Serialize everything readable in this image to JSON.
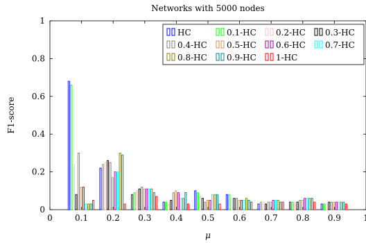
{
  "chart_data": {
    "type": "bar",
    "title": "Networks with 5000 nodes",
    "xlabel": "μ",
    "ylabel": "F1-score",
    "xlim": [
      0,
      1
    ],
    "ylim": [
      0,
      1
    ],
    "xticks": [
      0,
      0.1,
      0.2,
      0.3,
      0.4,
      0.5,
      0.6,
      0.7,
      0.8,
      0.9,
      1
    ],
    "xtick_labels": [
      "0",
      "0.1",
      "0.2",
      "0.3",
      "0.4",
      "0.5",
      "0.6",
      "0.7",
      "0.8",
      "0.9",
      "1"
    ],
    "yticks": [
      0,
      0.2,
      0.4,
      0.6,
      0.8,
      1
    ],
    "ytick_labels": [
      "0",
      "0.2",
      "0.4",
      "0.6",
      "0.8",
      "1"
    ],
    "grid": false,
    "legend_position": "top-right",
    "x": [
      0.06,
      0.16,
      0.26,
      0.36,
      0.46,
      0.56,
      0.66,
      0.76,
      0.86
    ],
    "bar_group_width": 0.085,
    "series": [
      {
        "name": "HC",
        "color": "#0000ff",
        "values": [
          0.68,
          0.22,
          0.08,
          0.04,
          0.1,
          0.08,
          0.03,
          0.04,
          0.03
        ]
      },
      {
        "name": "0.1-HC",
        "color": "#00ff00",
        "values": [
          0.66,
          0.24,
          0.09,
          0.04,
          0.09,
          0.08,
          0.04,
          0.04,
          0.03
        ]
      },
      {
        "name": "0.2-HC",
        "color": "#ffc0c0",
        "values": [
          0.24,
          0.25,
          0.1,
          0.03,
          0.07,
          0.06,
          0.04,
          0.04,
          0.03
        ]
      },
      {
        "name": "0.3-HC",
        "color": "#000000",
        "values": [
          0.08,
          0.26,
          0.11,
          0.05,
          0.06,
          0.06,
          0.03,
          0.04,
          0.04
        ]
      },
      {
        "name": "0.4-HC",
        "color": "#808080",
        "values": [
          0.3,
          0.25,
          0.12,
          0.09,
          0.04,
          0.06,
          0.04,
          0.05,
          0.04
        ]
      },
      {
        "name": "0.5-HC",
        "color": "#d09050",
        "values": [
          0.12,
          0.17,
          0.11,
          0.1,
          0.05,
          0.05,
          0.04,
          0.05,
          0.04
        ]
      },
      {
        "name": "0.6-HC",
        "color": "#a000a0",
        "values": [
          0.12,
          0.2,
          0.11,
          0.09,
          0.05,
          0.05,
          0.05,
          0.06,
          0.04
        ]
      },
      {
        "name": "0.7-HC",
        "color": "#00ffff",
        "values": [
          0.03,
          0.2,
          0.11,
          0.06,
          0.08,
          0.05,
          0.05,
          0.06,
          0.04
        ]
      },
      {
        "name": "0.8-HC",
        "color": "#808000",
        "values": [
          0.03,
          0.3,
          0.11,
          0.06,
          0.08,
          0.06,
          0.05,
          0.06,
          0.04
        ]
      },
      {
        "name": "0.9-HC",
        "color": "#008080",
        "values": [
          0.03,
          0.29,
          0.09,
          0.09,
          0.08,
          0.05,
          0.04,
          0.06,
          0.04
        ]
      },
      {
        "name": "1-HC",
        "color": "#ff0000",
        "values": [
          0.05,
          0.03,
          0.07,
          0.03,
          0.03,
          0.04,
          0.04,
          0.04,
          0.03
        ]
      }
    ]
  }
}
